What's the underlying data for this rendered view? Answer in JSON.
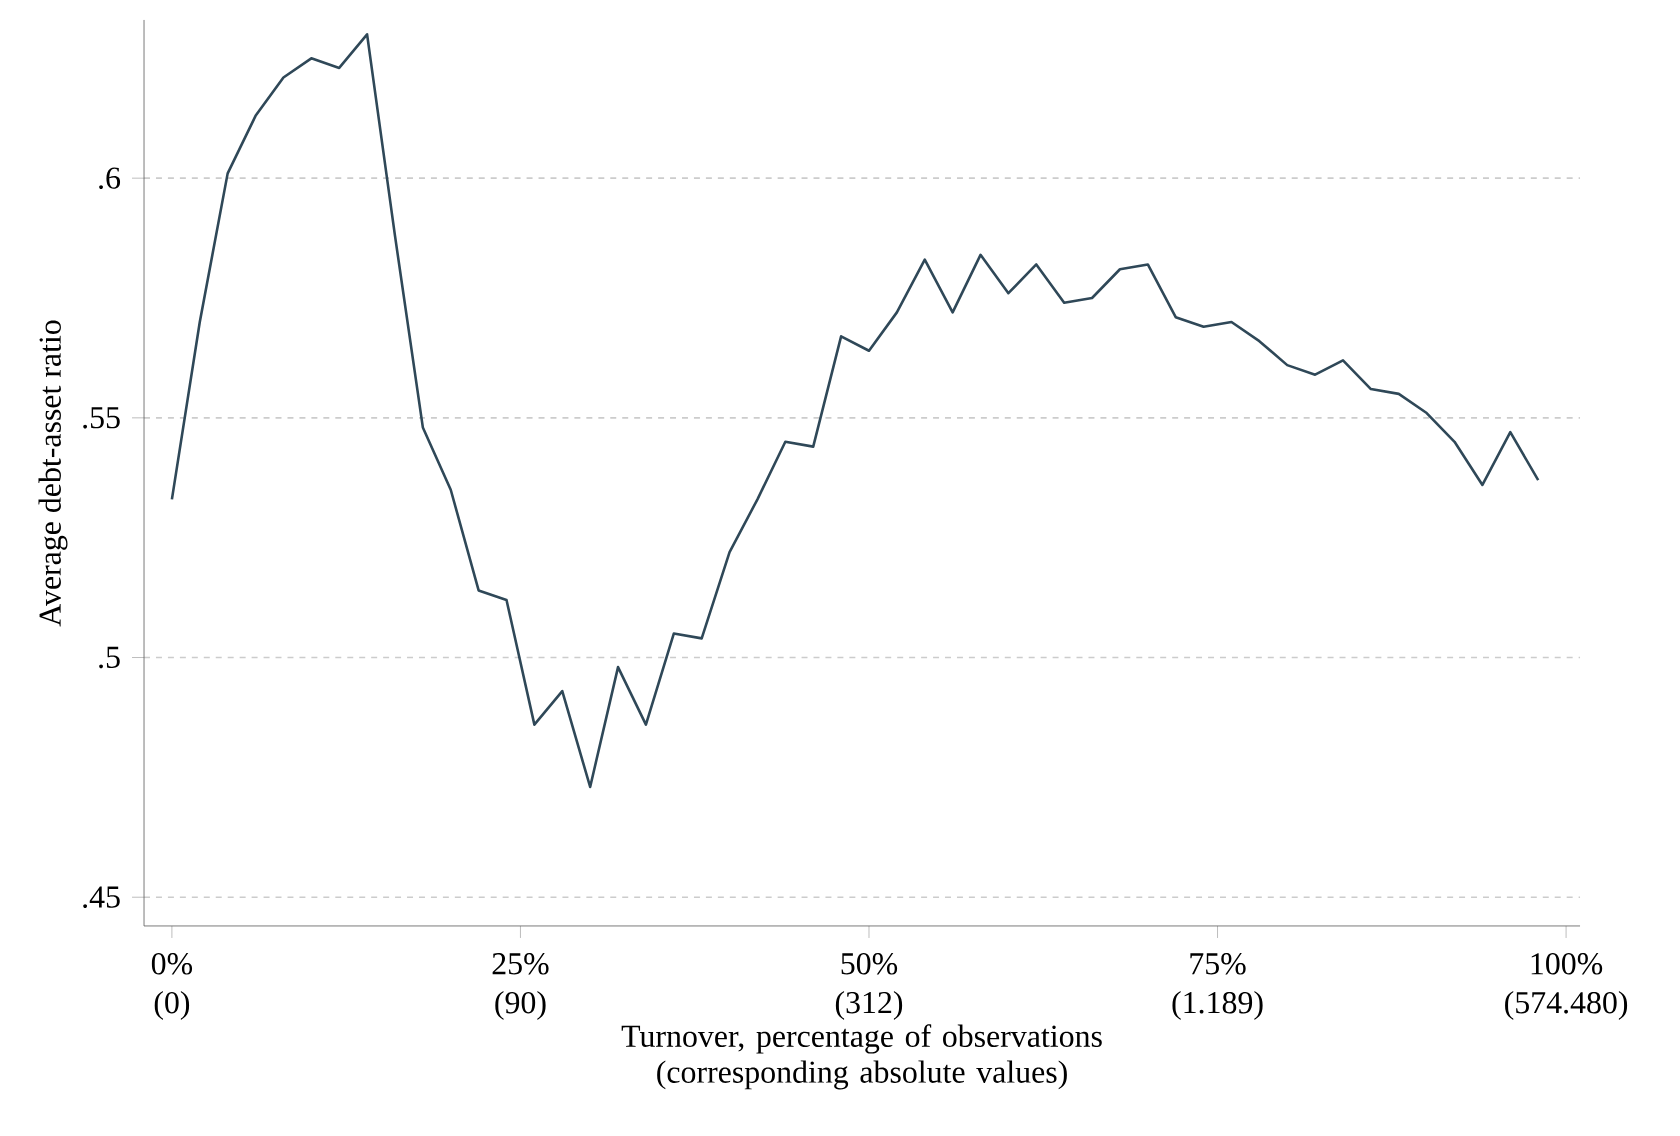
{
  "chart_data": {
    "type": "line",
    "xlabel": "Turnover, percentage of observations (corresponding absolute values)",
    "ylabel": "Average debt-asset ratio",
    "x": [
      0,
      2,
      4,
      6,
      8,
      10,
      12,
      14,
      16,
      18,
      20,
      22,
      24,
      26,
      28,
      30,
      32,
      34,
      36,
      38,
      40,
      42,
      44,
      46,
      48,
      50,
      52,
      54,
      56,
      58,
      60,
      62,
      64,
      66,
      68,
      70,
      72,
      74,
      76,
      78,
      80,
      82,
      84,
      86,
      88,
      90,
      92,
      94,
      96,
      98
    ],
    "values": [
      0.533,
      0.57,
      0.601,
      0.613,
      0.621,
      0.625,
      0.623,
      0.63,
      0.588,
      0.548,
      0.535,
      0.514,
      0.512,
      0.486,
      0.493,
      0.473,
      0.498,
      0.486,
      0.505,
      0.504,
      0.522,
      0.533,
      0.545,
      0.544,
      0.567,
      0.564,
      0.572,
      0.583,
      0.572,
      0.584,
      0.576,
      0.582,
      0.574,
      0.575,
      0.581,
      0.582,
      0.571,
      0.569,
      0.57,
      0.566,
      0.561,
      0.559,
      0.562,
      0.556,
      0.555,
      0.551,
      0.545,
      0.536,
      0.547,
      0.537
    ],
    "color": "#2f4858",
    "xlim": [
      -2,
      101
    ],
    "ylim": [
      0.444,
      0.633
    ],
    "xticks": [
      {
        "value": 0,
        "label": "0%"
      },
      {
        "value": 25,
        "label": "25%"
      },
      {
        "value": 50,
        "label": "50%"
      },
      {
        "value": 75,
        "label": "75%"
      },
      {
        "value": 100,
        "label": "100%"
      }
    ],
    "annotations": [
      "(0)",
      "(90)",
      "(312)",
      "(1.189)",
      "(574.480)"
    ],
    "yticks": [
      {
        "value": 0.45,
        "label": ".45"
      },
      {
        "value": 0.5,
        "label": ".5"
      },
      {
        "value": 0.55,
        "label": ".55"
      },
      {
        "value": 0.6,
        "label": ".6"
      }
    ],
    "grid": "y"
  }
}
